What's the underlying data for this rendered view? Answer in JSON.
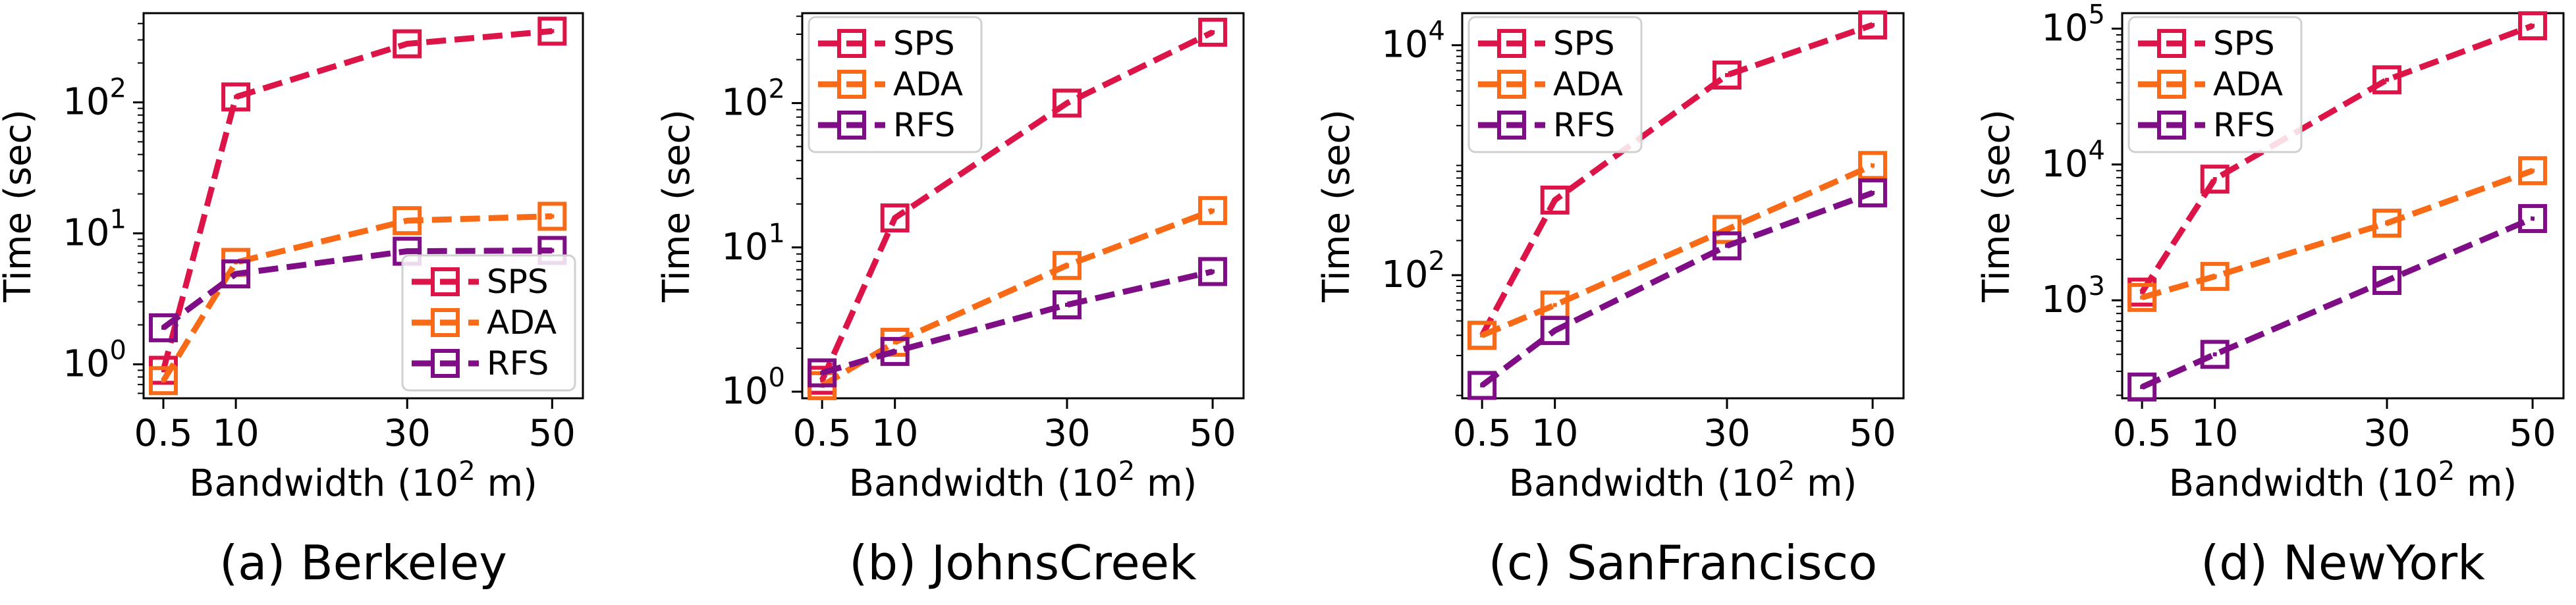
{
  "colors": {
    "SPS": "#dc1448",
    "ADA": "#f86a15",
    "RFS": "#7f0d85"
  },
  "chart_data": [
    {
      "type": "line",
      "caption": "(a) Berkeley",
      "title": "",
      "xlabel": "Bandwidth (10",
      "xlabel_sup": "2",
      "xlabel_tail": " m)",
      "ylabel": "Time (sec)",
      "yscale": "log",
      "ylim": [
        0.55,
        480
      ],
      "yticks": [
        1,
        10,
        100
      ],
      "ytick_labels": [
        {
          "base": "10",
          "exp": "0"
        },
        {
          "base": "10",
          "exp": "1"
        },
        {
          "base": "10",
          "exp": "2"
        }
      ],
      "x": [
        "0.5",
        "10",
        "30",
        "50"
      ],
      "legend_loc": "lower-right",
      "series": [
        {
          "name": "SPS",
          "values": [
            0.9,
            110,
            280,
            350
          ]
        },
        {
          "name": "ADA",
          "values": [
            0.75,
            6,
            12.5,
            13.5
          ]
        },
        {
          "name": "RFS",
          "values": [
            1.9,
            4.9,
            7.3,
            7.4
          ]
        }
      ]
    },
    {
      "type": "line",
      "caption": "(b) JohnsCreek",
      "title": "",
      "xlabel": "Bandwidth (10",
      "xlabel_sup": "2",
      "xlabel_tail": " m)",
      "ylabel": "Time (sec)",
      "yscale": "log",
      "ylim": [
        0.9,
        420
      ],
      "yticks": [
        1,
        10,
        100
      ],
      "ytick_labels": [
        {
          "base": "10",
          "exp": "0"
        },
        {
          "base": "10",
          "exp": "1"
        },
        {
          "base": "10",
          "exp": "2"
        }
      ],
      "x": [
        "0.5",
        "10",
        "30",
        "50"
      ],
      "legend_loc": "top-left",
      "series": [
        {
          "name": "SPS",
          "values": [
            1.2,
            16,
            100,
            310
          ]
        },
        {
          "name": "ADA",
          "values": [
            1.1,
            2.2,
            7.5,
            18
          ]
        },
        {
          "name": "RFS",
          "values": [
            1.35,
            1.9,
            4,
            6.8
          ]
        }
      ]
    },
    {
      "type": "line",
      "caption": "(c) SanFrancisco",
      "title": "",
      "xlabel": "Bandwidth (10",
      "xlabel_sup": "2",
      "xlabel_tail": " m)",
      "ylabel": "Time (sec)",
      "yscale": "log",
      "ylim": [
        8.5,
        19000
      ],
      "yticks": [
        100,
        10000
      ],
      "ytick_labels": [
        {
          "base": "10",
          "exp": "2"
        },
        {
          "base": "10",
          "exp": "4"
        }
      ],
      "x": [
        "0.5",
        "10",
        "30",
        "50"
      ],
      "legend_loc": "top-left",
      "series": [
        {
          "name": "SPS",
          "values": [
            30,
            450,
            5500,
            15000
          ]
        },
        {
          "name": "ADA",
          "values": [
            30,
            55,
            250,
            900
          ]
        },
        {
          "name": "RFS",
          "values": [
            11,
            33,
            180,
            520
          ]
        }
      ]
    },
    {
      "type": "line",
      "caption": "(d) NewYork",
      "title": "",
      "xlabel": "Bandwidth (10",
      "xlabel_sup": "2",
      "xlabel_tail": " m)",
      "ylabel": "Time (sec)",
      "yscale": "log",
      "ylim": [
        190,
        130000
      ],
      "yticks": [
        1000,
        10000,
        100000
      ],
      "ytick_labels": [
        {
          "base": "10",
          "exp": "3"
        },
        {
          "base": "10",
          "exp": "4"
        },
        {
          "base": "10",
          "exp": "5"
        }
      ],
      "x": [
        "0.5",
        "10",
        "30",
        "50"
      ],
      "legend_loc": "top-left",
      "series": [
        {
          "name": "SPS",
          "values": [
            1150,
            7800,
            42000,
            105000
          ]
        },
        {
          "name": "ADA",
          "values": [
            1050,
            1500,
            3700,
            9000
          ]
        },
        {
          "name": "RFS",
          "values": [
            230,
            400,
            1400,
            4000
          ]
        }
      ]
    }
  ]
}
